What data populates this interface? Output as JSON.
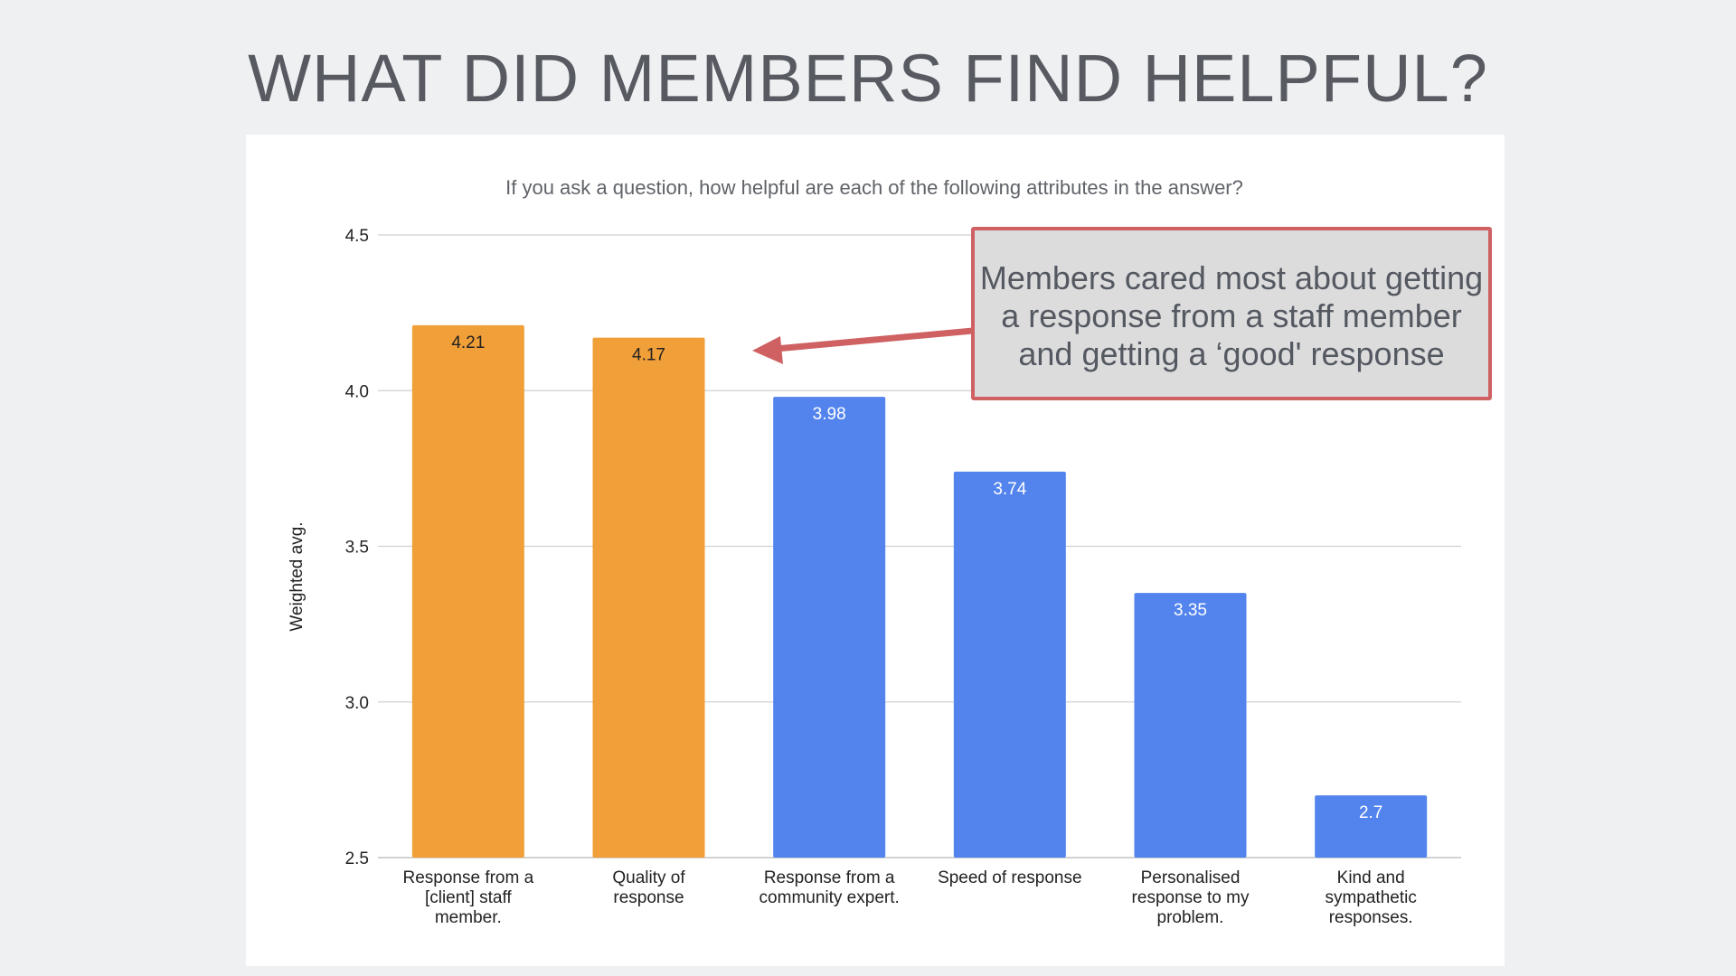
{
  "slide": {
    "title": "WHAT DID MEMBERS FIND HELPFUL?"
  },
  "callout": {
    "text": "Members cared most about getting a response from a staff member and getting a ‘good' response"
  },
  "colors": {
    "highlight_bar": "#f19f38",
    "default_bar": "#5384ed",
    "callout_border": "#cf6163",
    "callout_fill": "#dcdcdd",
    "arrow": "#cf6163"
  },
  "chart_data": {
    "type": "bar",
    "title": "If you ask a question, how helpful are each of the following attributes in the answer?",
    "ylabel": "Weighted avg.",
    "xlabel": "",
    "ylim": [
      2.5,
      4.5
    ],
    "yticks": [
      "2.5",
      "3.0",
      "3.5",
      "4.0",
      "4.5"
    ],
    "grid": true,
    "categories": [
      [
        "Response from a",
        "[client] staff",
        "member."
      ],
      [
        "Quality of",
        "response"
      ],
      [
        "Response from a",
        "community expert."
      ],
      [
        "Speed of response"
      ],
      [
        "Personalised",
        "response to my",
        "problem."
      ],
      [
        "Kind and",
        "sympathetic",
        "responses."
      ]
    ],
    "values": [
      4.21,
      4.17,
      3.98,
      3.74,
      3.35,
      2.7
    ],
    "value_labels": [
      "4.21",
      "4.17",
      "3.98",
      "3.74",
      "3.35",
      "2.7"
    ],
    "highlighted": [
      true,
      true,
      false,
      false,
      false,
      false
    ]
  }
}
